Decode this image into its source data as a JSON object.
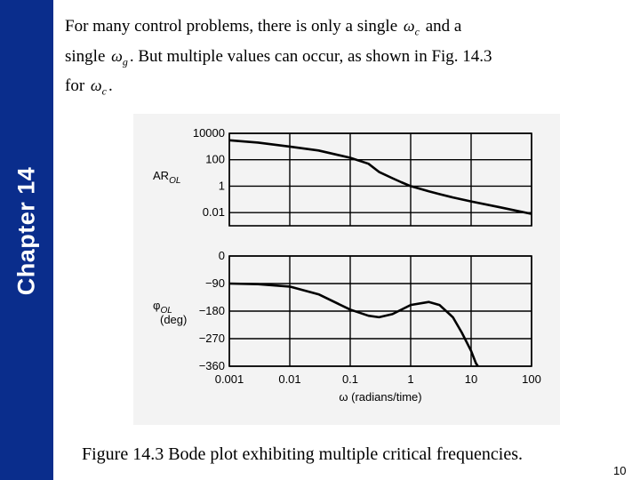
{
  "slide": {
    "sidebar_label": "Chapter 14",
    "intro": {
      "part1": "For many control problems, there is only a single",
      "sym1": "ω",
      "sym1_sub": "c",
      "part2": "and a",
      "part3": "single",
      "sym2": "ω",
      "sym2_sub": "g",
      "part4": ". But multiple values can occur, as shown in Fig. 14.3",
      "part5": "for",
      "sym3": "ω",
      "sym3_sub": "c",
      "part6": "."
    },
    "caption": "Figure 14.3 Bode plot exhibiting multiple critical frequencies.",
    "page_number": "10",
    "colors": {
      "sidebar": "#0a2d8c",
      "plot_background": "#f3f3f3",
      "curve": "#000000"
    }
  },
  "chart_data": {
    "type": "line",
    "xlabel": "ω (radians/time)",
    "x_scale": "log",
    "xlim": [
      0.001,
      100
    ],
    "x_ticks": [
      "0.001",
      "0.01",
      "0.1",
      "1",
      "10",
      "100"
    ],
    "grid": true,
    "panels": [
      {
        "ylabel_main": "AR",
        "ylabel_sub": "OL",
        "y_scale": "log",
        "ylim": [
          0.001,
          10000
        ],
        "y_ticks": [
          "10000",
          "100",
          "1",
          "0.01"
        ],
        "y_tick_values": [
          10000,
          100,
          1,
          0.01
        ],
        "x": [
          0.001,
          0.003,
          0.01,
          0.03,
          0.1,
          0.2,
          0.3,
          0.5,
          0.7,
          1,
          2,
          3,
          5,
          10,
          30,
          100
        ],
        "values": [
          3000,
          2000,
          1000,
          500,
          140,
          50,
          12,
          4,
          2,
          1,
          0.4,
          0.25,
          0.14,
          0.07,
          0.025,
          0.008
        ]
      },
      {
        "ylabel_main": "φ",
        "ylabel_sub": "OL",
        "ylabel_unit": "(deg)",
        "y_scale": "linear",
        "ylim": [
          -360,
          0
        ],
        "y_ticks": [
          "0",
          "−90",
          "−180",
          "−270",
          "−360"
        ],
        "y_tick_values": [
          0,
          -90,
          -180,
          -270,
          -360
        ],
        "x": [
          0.001,
          0.003,
          0.01,
          0.03,
          0.1,
          0.2,
          0.3,
          0.5,
          1,
          2,
          3,
          5,
          7,
          10,
          12,
          13
        ],
        "values": [
          -90,
          -92,
          -100,
          -125,
          -175,
          -195,
          -200,
          -190,
          -160,
          -150,
          -160,
          -200,
          -250,
          -310,
          -350,
          -360
        ]
      }
    ]
  }
}
